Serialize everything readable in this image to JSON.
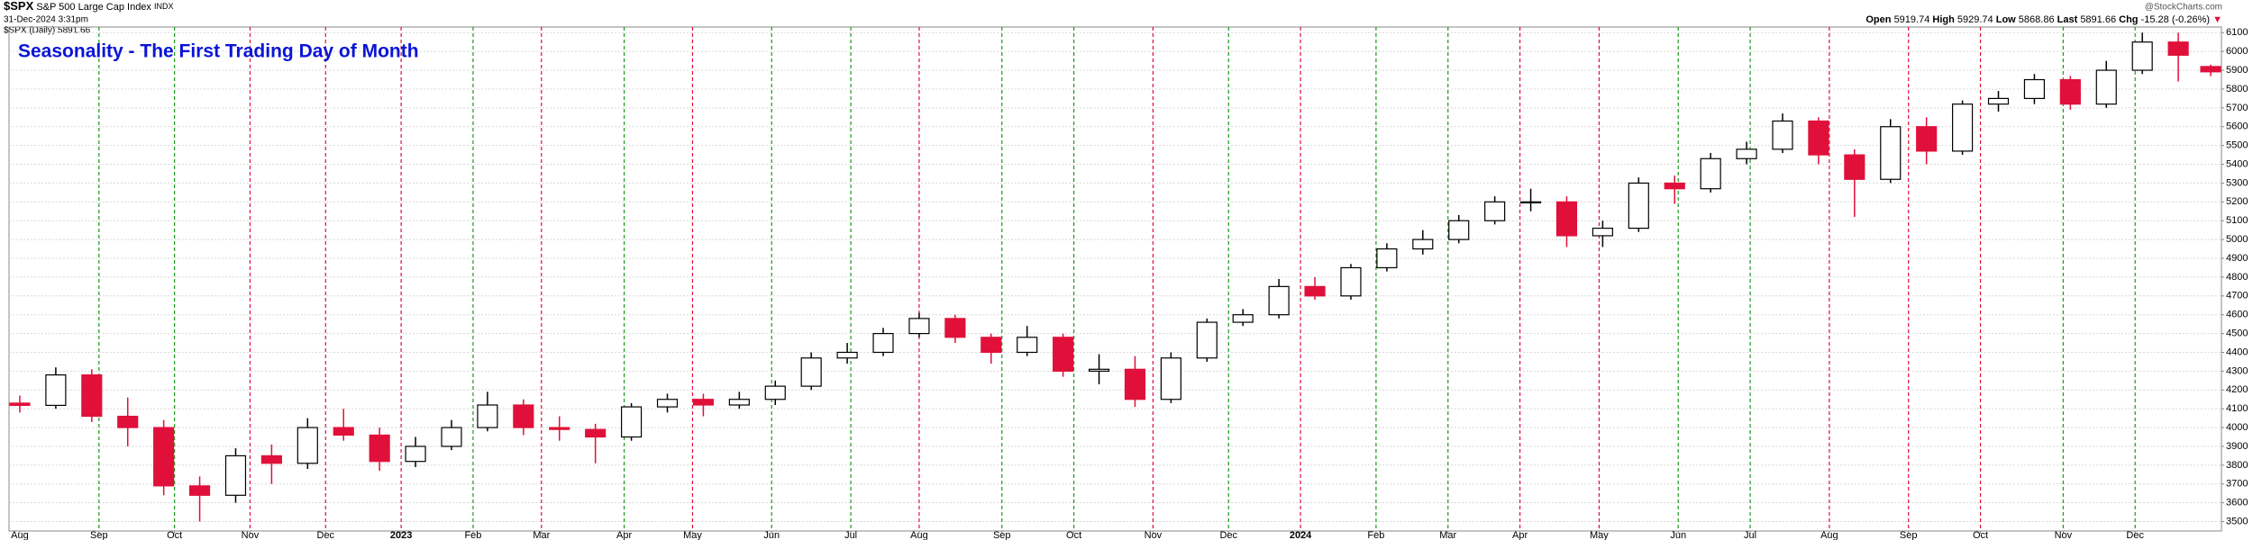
{
  "chart_data": {
    "type": "candlestick",
    "symbol": "$SPX",
    "name": "S&P 500 Large Cap Index",
    "exchange": "INDX",
    "date": "31-Dec-2024 3:31pm",
    "legend": "$SPX (Daily) 5891.66",
    "watermark": "@StockCharts.com",
    "title": "Seasonality - The First Trading Day of Month",
    "quote": {
      "open_label": "Open",
      "open": 5919.74,
      "high_label": "High",
      "high": 5929.74,
      "low_label": "Low",
      "low": 5868.86,
      "last_label": "Last",
      "last": 5891.66,
      "chg_label": "Chg",
      "chg": -15.28,
      "chg_pct": "(-0.26%)",
      "arrow": "▼"
    },
    "up_color": "#000000",
    "down_color": "#e0103a",
    "grid": true,
    "x": [
      0,
      10,
      20,
      30,
      40,
      50,
      60,
      70,
      80,
      90,
      100,
      110,
      120,
      130,
      140,
      150,
      160,
      170,
      180,
      190,
      200,
      210,
      220,
      230,
      240,
      250,
      260,
      270,
      280,
      290,
      300,
      310,
      320,
      330,
      340,
      350,
      360,
      370,
      380,
      390,
      400,
      410,
      420,
      430,
      440,
      450,
      460,
      470,
      480,
      490,
      500,
      510,
      520,
      530,
      540,
      550,
      560,
      570,
      580,
      590,
      600,
      609
    ],
    "open": [
      4130,
      4118,
      4280,
      4060,
      4000,
      3690,
      3640,
      3850,
      3810,
      4000,
      3960,
      3820,
      3900,
      4000,
      4120,
      4000,
      3990,
      3950,
      4110,
      4150,
      4120,
      4150,
      4220,
      4370,
      4400,
      4500,
      4580,
      4480,
      4400,
      4480,
      4300,
      4310,
      4150,
      4370,
      4560,
      4600,
      4750,
      4700,
      4850,
      4950,
      5000,
      5100,
      5200,
      5200,
      5020,
      5060,
      5300,
      5270,
      5430,
      5480,
      5630,
      5450,
      5320,
      5600,
      5470,
      5720,
      5750,
      5850,
      5720,
      5900,
      6050,
      5919.74
    ],
    "high": [
      4170,
      4320,
      4310,
      4160,
      4040,
      3740,
      3890,
      3910,
      4050,
      4100,
      4000,
      3950,
      4040,
      4190,
      4150,
      4060,
      4020,
      4130,
      4180,
      4180,
      4190,
      4250,
      4400,
      4450,
      4530,
      4610,
      4600,
      4500,
      4540,
      4500,
      4390,
      4380,
      4400,
      4580,
      4630,
      4790,
      4800,
      4870,
      4980,
      5050,
      5130,
      5230,
      5270,
      5230,
      5100,
      5330,
      5340,
      5460,
      5520,
      5670,
      5650,
      5480,
      5640,
      5650,
      5740,
      5790,
      5880,
      5870,
      5950,
      6100,
      6100,
      5929.74
    ],
    "low": [
      4080,
      4100,
      4030,
      3900,
      3640,
      3500,
      3600,
      3700,
      3780,
      3930,
      3770,
      3790,
      3880,
      3980,
      3960,
      3930,
      3810,
      3930,
      4080,
      4060,
      4100,
      4120,
      4200,
      4340,
      4380,
      4480,
      4450,
      4340,
      4380,
      4270,
      4230,
      4110,
      4130,
      4350,
      4540,
      4580,
      4680,
      4680,
      4830,
      4920,
      4980,
      5080,
      5150,
      4960,
      4960,
      5040,
      5190,
      5250,
      5400,
      5460,
      5400,
      5120,
      5300,
      5400,
      5450,
      5680,
      5720,
      5690,
      5700,
      5880,
      5840,
      5868.86
    ],
    "close": [
      4118,
      4280,
      4060,
      4000,
      3690,
      3640,
      3850,
      3810,
      4000,
      3960,
      3820,
      3900,
      4000,
      4120,
      4000,
      3990,
      3950,
      4110,
      4150,
      4120,
      4150,
      4220,
      4370,
      4400,
      4500,
      4580,
      4480,
      4400,
      4480,
      4300,
      4310,
      4150,
      4370,
      4560,
      4600,
      4750,
      4700,
      4850,
      4950,
      5000,
      5100,
      5200,
      5200,
      5020,
      5060,
      5300,
      5270,
      5430,
      5480,
      5630,
      5450,
      5320,
      5600,
      5470,
      5720,
      5750,
      5850,
      5720,
      5900,
      6050,
      5980,
      5891.66
    ],
    "xlim": [
      -3,
      612
    ],
    "ylim": [
      3450,
      6130
    ],
    "yticks": [
      3500,
      3600,
      3700,
      3800,
      3900,
      4000,
      4100,
      4200,
      4300,
      4400,
      4500,
      4600,
      4700,
      4800,
      4900,
      5000,
      5100,
      5200,
      5300,
      5400,
      5500,
      5600,
      5700,
      5800,
      5900,
      6000,
      6100
    ],
    "xticks": [
      {
        "value": 0,
        "label": "Aug"
      },
      {
        "value": 22,
        "label": "Sep"
      },
      {
        "value": 43,
        "label": "Oct"
      },
      {
        "value": 64,
        "label": "Nov"
      },
      {
        "value": 85,
        "label": "Dec"
      },
      {
        "value": 106,
        "label": "2023"
      },
      {
        "value": 126,
        "label": "Feb"
      },
      {
        "value": 145,
        "label": "Mar"
      },
      {
        "value": 168,
        "label": "Apr"
      },
      {
        "value": 187,
        "label": "May"
      },
      {
        "value": 209,
        "label": "Jun"
      },
      {
        "value": 231,
        "label": "Jul"
      },
      {
        "value": 250,
        "label": "Aug"
      },
      {
        "value": 273,
        "label": "Sep"
      },
      {
        "value": 293,
        "label": "Oct"
      },
      {
        "value": 315,
        "label": "Nov"
      },
      {
        "value": 336,
        "label": "Dec"
      },
      {
        "value": 356,
        "label": "2024"
      },
      {
        "value": 377,
        "label": "Feb"
      },
      {
        "value": 397,
        "label": "Mar"
      },
      {
        "value": 417,
        "label": "Apr"
      },
      {
        "value": 439,
        "label": "May"
      },
      {
        "value": 461,
        "label": "Jun"
      },
      {
        "value": 481,
        "label": "Jul"
      },
      {
        "value": 503,
        "label": "Aug"
      },
      {
        "value": 525,
        "label": "Sep"
      },
      {
        "value": 545,
        "label": "Oct"
      },
      {
        "value": 568,
        "label": "Nov"
      },
      {
        "value": 588,
        "label": "Dec"
      }
    ],
    "vlines": {
      "x": [
        22,
        43,
        64,
        85,
        106,
        126,
        145,
        168,
        187,
        209,
        231,
        250,
        273,
        293,
        315,
        336,
        356,
        377,
        397,
        417,
        439,
        461,
        481,
        503,
        525,
        545,
        568,
        588
      ],
      "colors": [
        "#1a9a1a",
        "#1a9a1a",
        "#e0103a",
        "#e0103a",
        "#e0103a",
        "#1a9a1a",
        "#e0103a",
        "#1a9a1a",
        "#e0103a",
        "#1a9a1a",
        "#1a9a1a",
        "#e0103a",
        "#1a9a1a",
        "#1a9a1a",
        "#e0103a",
        "#1a9a1a",
        "#e0103a",
        "#1a9a1a",
        "#1a9a1a",
        "#e0103a",
        "#e0103a",
        "#1a9a1a",
        "#1a9a1a",
        "#e0103a",
        "#e0103a",
        "#e0103a",
        "#1a9a1a",
        "#1a9a1a"
      ]
    }
  }
}
